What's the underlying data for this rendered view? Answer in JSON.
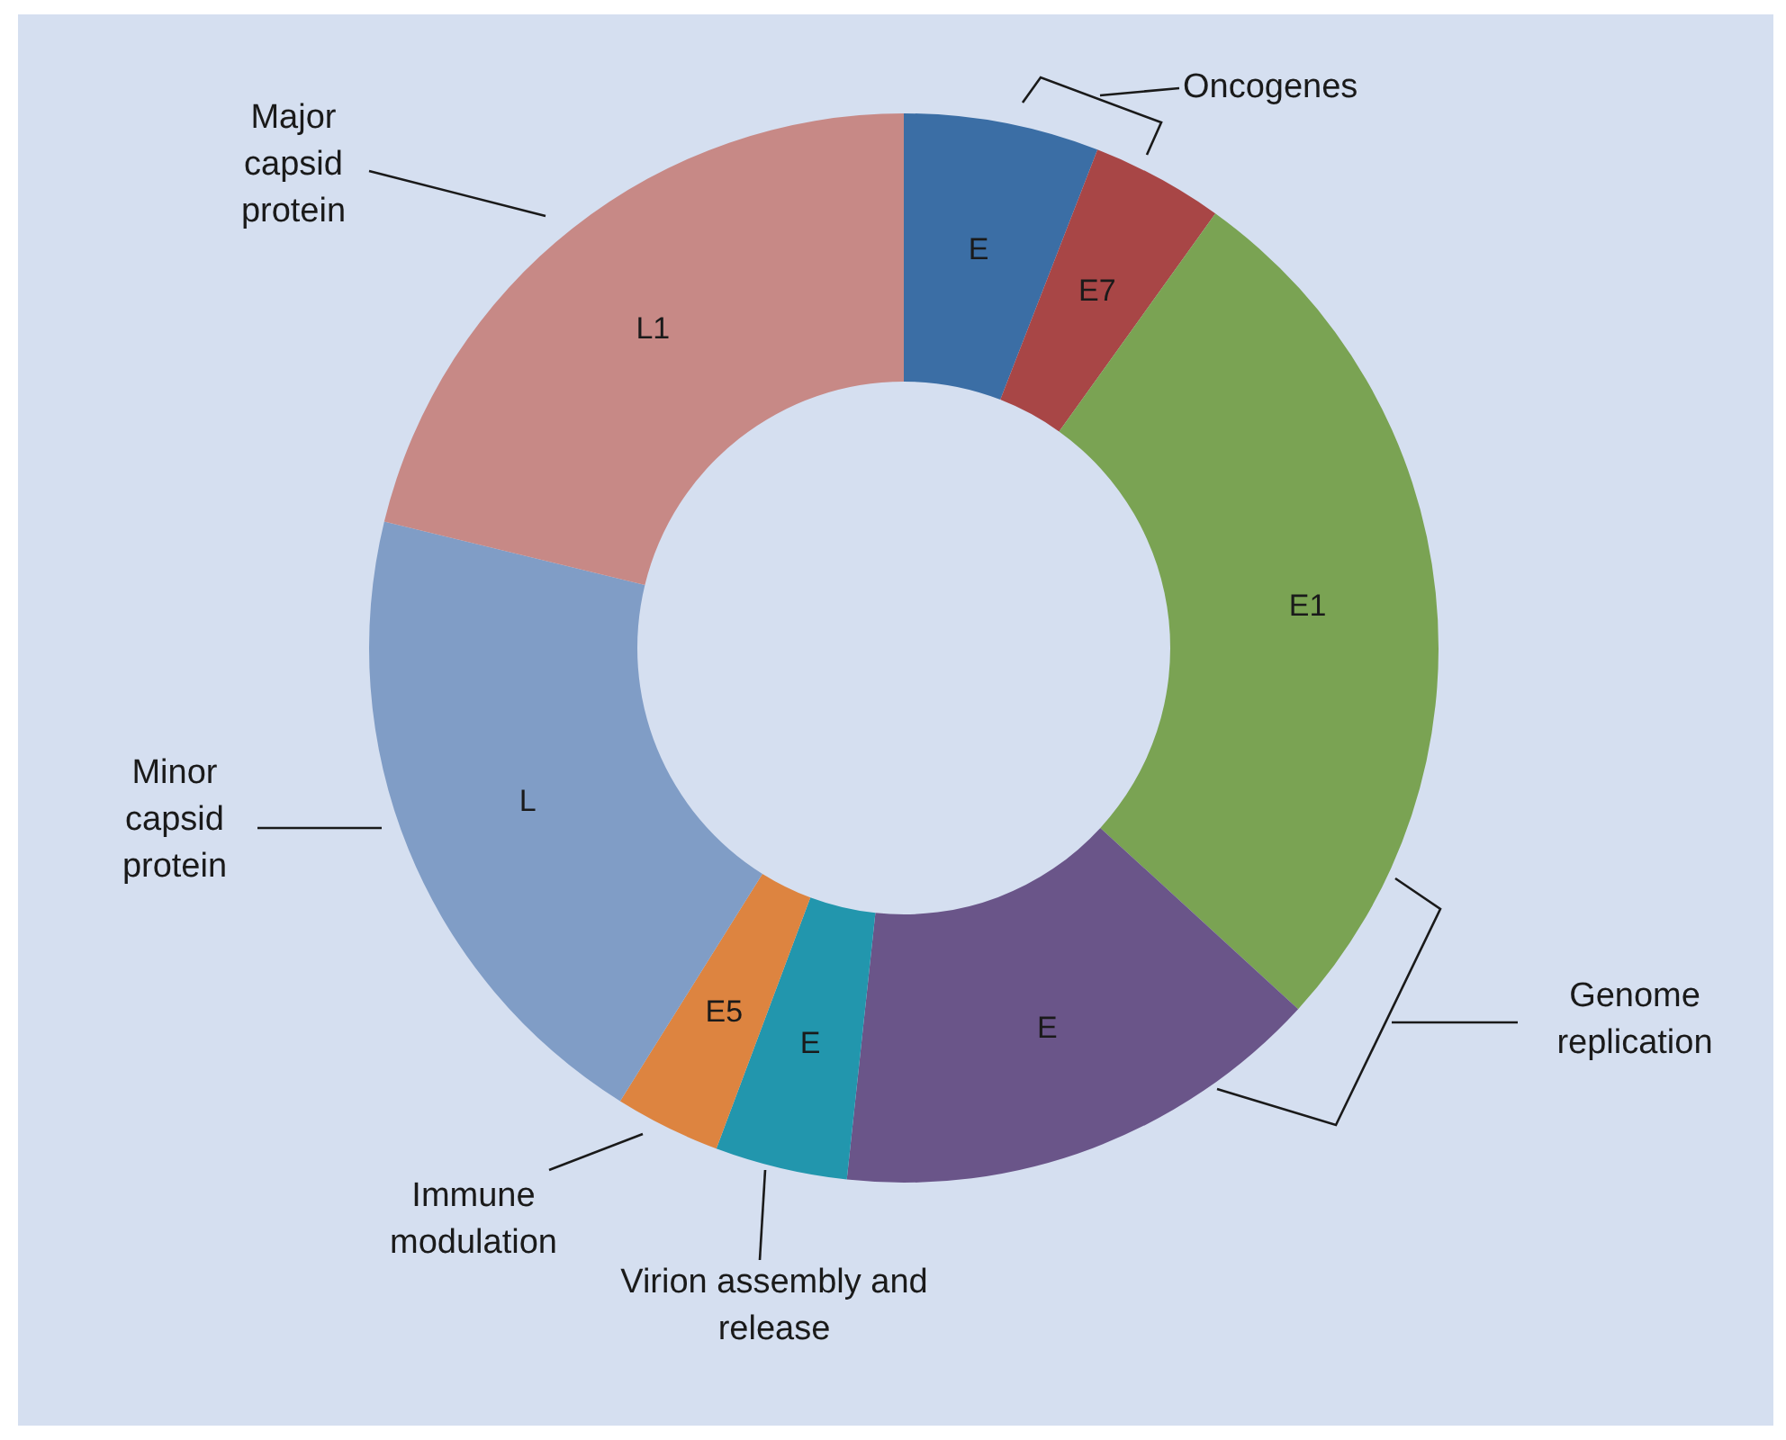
{
  "chart_data": {
    "type": "donut",
    "categories": [
      "E",
      "E7",
      "E1",
      "E",
      "E",
      "E5",
      "L",
      "L1"
    ],
    "values": [
      5.9,
      4.0,
      26.9,
      14.9,
      4.0,
      3.2,
      19.9,
      21.2
    ],
    "colors": [
      "#3b6ea5",
      "#a84646",
      "#7aa353",
      "#6a5589",
      "#2296ad",
      "#dd8440",
      "#809dc6",
      "#c78986"
    ],
    "annotations": [
      "Oncogenes",
      "Genome replication",
      "Virion assembly and release",
      "Immune modulation",
      "Minor capsid protein",
      "Major capsid protein"
    ]
  }
}
